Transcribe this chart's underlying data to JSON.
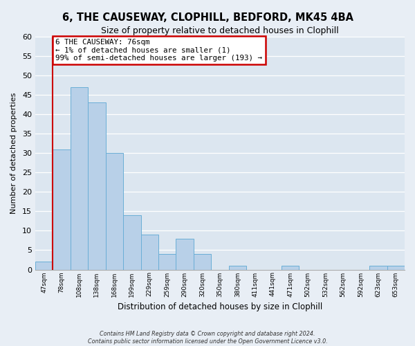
{
  "title": "6, THE CAUSEWAY, CLOPHILL, BEDFORD, MK45 4BA",
  "subtitle": "Size of property relative to detached houses in Clophill",
  "xlabel": "Distribution of detached houses by size in Clophill",
  "ylabel": "Number of detached properties",
  "bar_labels": [
    "47sqm",
    "78sqm",
    "108sqm",
    "138sqm",
    "168sqm",
    "199sqm",
    "229sqm",
    "259sqm",
    "290sqm",
    "320sqm",
    "350sqm",
    "380sqm",
    "411sqm",
    "441sqm",
    "471sqm",
    "502sqm",
    "532sqm",
    "562sqm",
    "592sqm",
    "623sqm",
    "653sqm"
  ],
  "bar_heights": [
    2,
    31,
    47,
    43,
    30,
    14,
    9,
    4,
    8,
    4,
    0,
    1,
    0,
    0,
    1,
    0,
    0,
    0,
    0,
    1,
    1
  ],
  "bar_color": "#b8d0e8",
  "bar_edge_color": "#6aaed6",
  "vline_color": "#cc0000",
  "vline_x_index": 1,
  "annotation_title": "6 THE CAUSEWAY: 76sqm",
  "annotation_line1": "← 1% of detached houses are smaller (1)",
  "annotation_line2": "99% of semi-detached houses are larger (193) →",
  "annotation_box_edge": "#cc0000",
  "ylim": [
    0,
    60
  ],
  "yticks": [
    0,
    5,
    10,
    15,
    20,
    25,
    30,
    35,
    40,
    45,
    50,
    55,
    60
  ],
  "footer_line1": "Contains HM Land Registry data © Crown copyright and database right 2024.",
  "footer_line2": "Contains public sector information licensed under the Open Government Licence v3.0.",
  "fig_bg_color": "#e8eef5",
  "plot_bg_color": "#dce6f0"
}
